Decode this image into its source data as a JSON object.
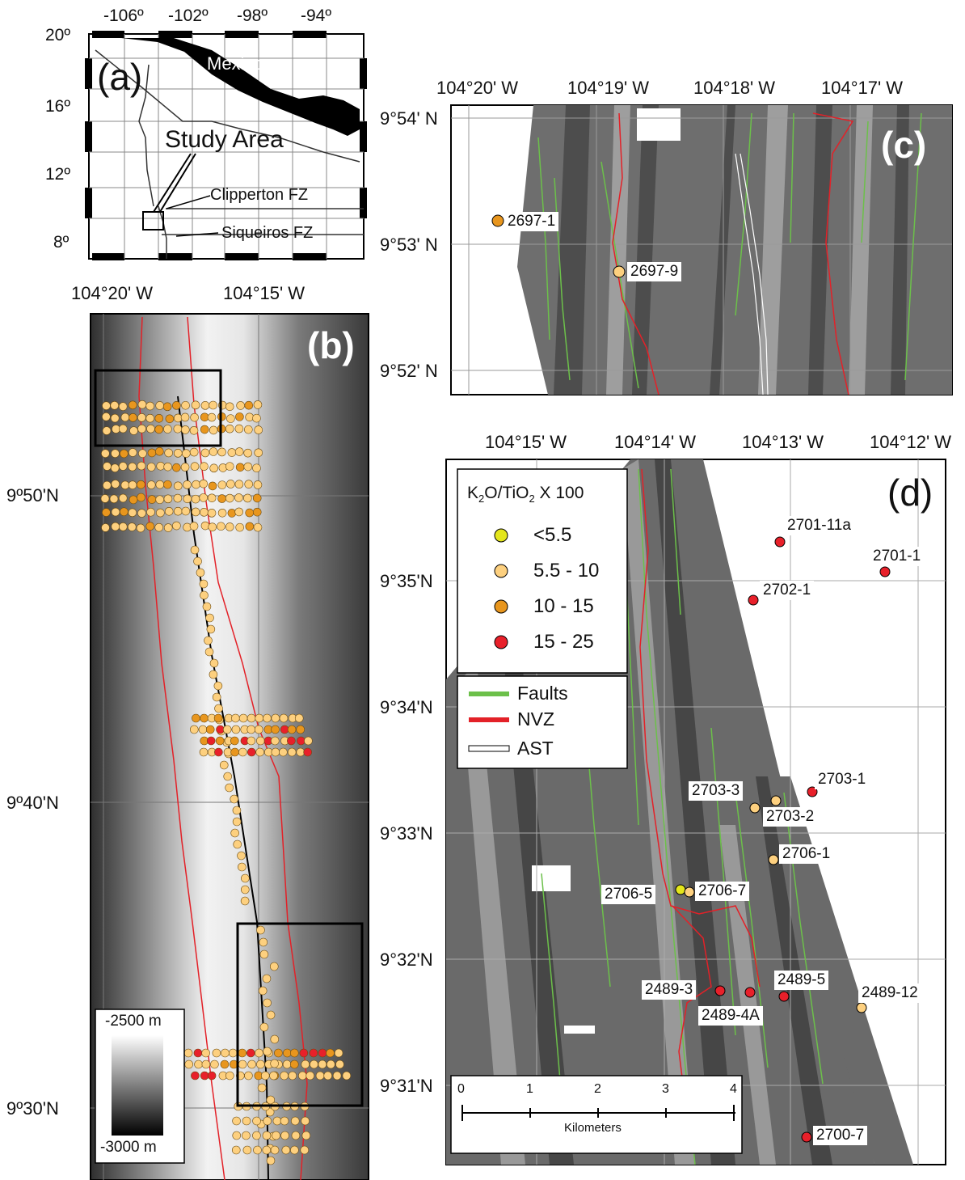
{
  "panel_a": {
    "letter": "(a)",
    "country": "Mexico",
    "lon_ticks": [
      "-106º",
      "-102º",
      "-98º",
      "-94º"
    ],
    "lat_ticks": [
      "20º",
      "16º",
      "12º",
      "8º"
    ],
    "study_area": "Study Area",
    "clipperton": "Clipperton FZ",
    "siqueiros": "Siqueiros FZ"
  },
  "panel_b": {
    "letter": "(b)",
    "lon_ticks": [
      "104°20' W",
      "104°15' W"
    ],
    "lat_ticks": [
      "9º50'N",
      "9º40'N",
      "9º30'N"
    ],
    "scale_top": "-2500 m",
    "scale_bottom": "-3000 m"
  },
  "panel_c": {
    "letter": "(c)",
    "lon_ticks": [
      "104°20' W",
      "104°19' W",
      "104°18' W",
      "104°17' W"
    ],
    "lat_ticks": [
      "9°54' N",
      "9°53' N",
      "9°52' N"
    ],
    "samples": [
      {
        "id": "2697-1",
        "class": "10-15"
      },
      {
        "id": "2697-9",
        "class": "5.5-10"
      }
    ]
  },
  "panel_d": {
    "letter": "(d)",
    "lon_ticks": [
      "104°15' W",
      "104°14' W",
      "104°13' W",
      "104°12' W"
    ],
    "lat_ticks": [
      "9°35'N",
      "9°34'N",
      "9°33'N",
      "9°32'N",
      "9°31'N"
    ],
    "legend": {
      "title_k": "K",
      "title_2a": "2",
      "title_o": "O/TiO",
      "title_2b": "2",
      "title_rest": " X 100",
      "classes": [
        {
          "label": "<5.5",
          "color": "#e4e61c"
        },
        {
          "label": "5.5 - 10",
          "color": "#fdd07f"
        },
        {
          "label": "10 - 15",
          "color": "#e8961e"
        },
        {
          "label": "15 - 25",
          "color": "#e8202a"
        }
      ],
      "lines": [
        {
          "label": "Faults",
          "color": "#6cc04a"
        },
        {
          "label": "NVZ",
          "color": "#e32128"
        },
        {
          "label": "AST",
          "color": "#ffffff"
        }
      ]
    },
    "scalebar": {
      "ticks": [
        "0",
        "1",
        "2",
        "3",
        "4"
      ],
      "unit": "Kilometers"
    },
    "samples": [
      {
        "id": "2701-11a",
        "class": "15-25"
      },
      {
        "id": "2701-1",
        "class": "15-25"
      },
      {
        "id": "2702-1",
        "class": "15-25"
      },
      {
        "id": "2703-1",
        "class": "15-25"
      },
      {
        "id": "2703-3",
        "class": "5.5-10"
      },
      {
        "id": "2703-2",
        "class": "5.5-10"
      },
      {
        "id": "2706-1",
        "class": "5.5-10"
      },
      {
        "id": "2706-5",
        "class": "<5.5"
      },
      {
        "id": "2706-7",
        "class": "5.5-10"
      },
      {
        "id": "2489-3",
        "class": "15-25"
      },
      {
        "id": "2489-4A",
        "class": "15-25"
      },
      {
        "id": "2489-5",
        "class": "15-25"
      },
      {
        "id": "2489-12",
        "class": "5.5-10"
      },
      {
        "id": "2700-7",
        "class": "15-25"
      }
    ]
  }
}
